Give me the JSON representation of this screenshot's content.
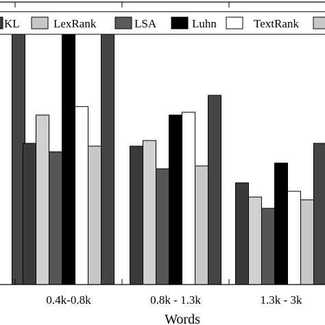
{
  "chart_data": {
    "type": "bar",
    "xlabel": "Words",
    "ylabel": "",
    "ylim": [
      0,
      100
    ],
    "grid": false,
    "legend": "top",
    "categories": [
      "",
      "0.4k-0.8k",
      "0.8k - 1.3k",
      "1.3k - 3k",
      ""
    ],
    "series": [
      {
        "name": "",
        "color": "#3a3a3a",
        "values": [
          null,
          50,
          49,
          36,
          null
        ]
      },
      {
        "name": "",
        "color": "#d0d0d0",
        "values": [
          null,
          60,
          51,
          31,
          null
        ]
      },
      {
        "name": "KL",
        "color": "#555555",
        "values": [
          null,
          47,
          41,
          27,
          null
        ]
      },
      {
        "name": "LexRank",
        "color": "#c4c4c4",
        "values": [
          null,
          null,
          null,
          null,
          null
        ]
      },
      {
        "name": "LSA",
        "color": "#656565",
        "values": [
          null,
          null,
          null,
          null,
          null
        ]
      },
      {
        "name": "Luhn",
        "color": "#000000",
        "values": [
          91,
          91,
          60,
          43,
          null
        ]
      },
      {
        "name": "TextRank",
        "color": "#ffffff",
        "values": [
          null,
          63,
          61,
          33,
          null
        ]
      },
      {
        "name": "",
        "color": "#c8c8c8",
        "values": [
          null,
          49,
          42,
          30,
          null
        ]
      },
      {
        "name": "",
        "color": "#444444",
        "values": [
          89,
          92,
          67,
          50,
          null
        ]
      }
    ]
  },
  "legend": {
    "items": [
      {
        "label": "KL",
        "color": "#3a3a3a"
      },
      {
        "label": "LexRank",
        "color": "#c8c8c8"
      },
      {
        "label": "LSA",
        "color": "#5c5c5c"
      },
      {
        "label": "Luhn",
        "color": "#000000"
      },
      {
        "label": "TextRank",
        "color": "#ffffff"
      },
      {
        "label": "",
        "color": "#c8c8c8"
      }
    ]
  }
}
